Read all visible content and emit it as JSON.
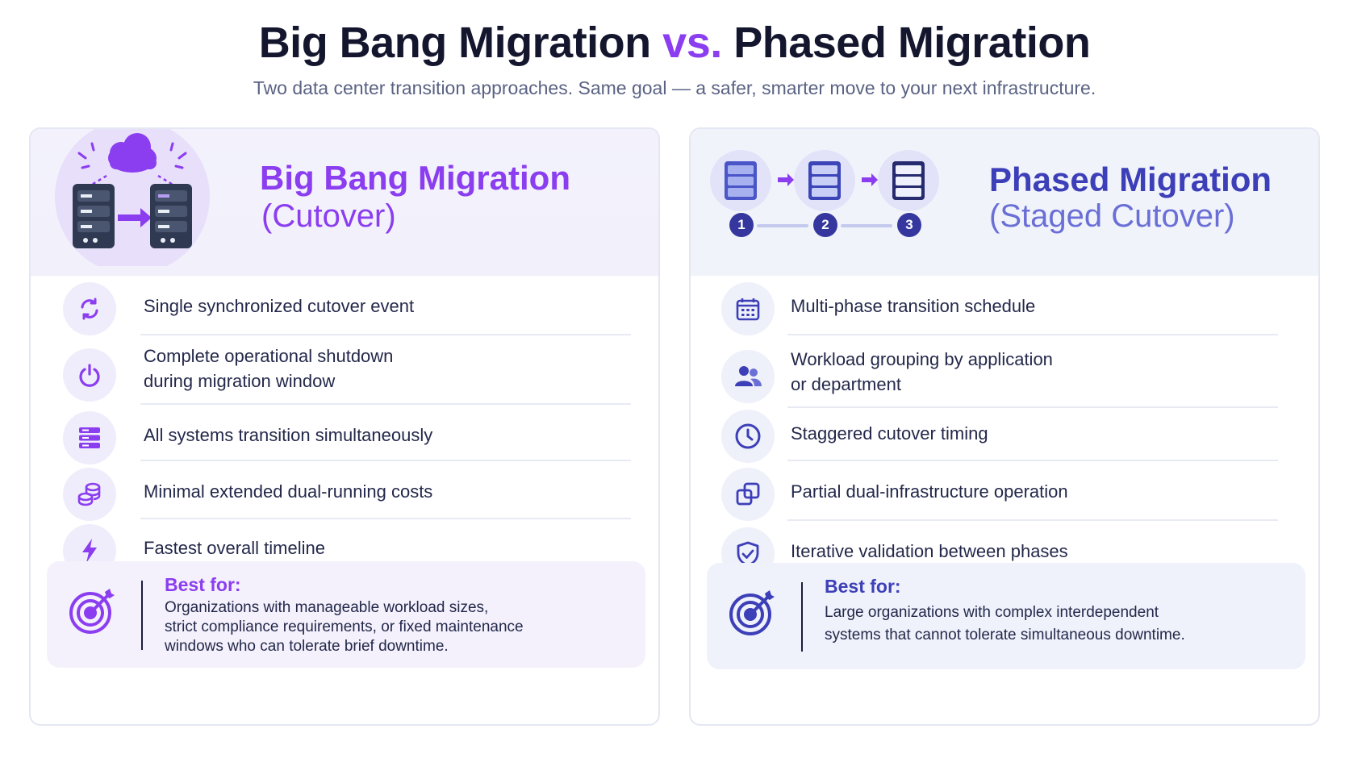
{
  "header": {
    "title_part1": "Big Bang Migration ",
    "title_vs": "vs.",
    "title_part2": " Phased Migration",
    "subtitle": "Two data center transition approaches. Same goal — a safer, smarter move to your next infrastructure."
  },
  "left": {
    "title": "Big Bang Migration",
    "subtitle": "(Cutover)",
    "items": [
      {
        "icon": "sync-icon",
        "label": "Single synchronized cutover event"
      },
      {
        "icon": "power-icon",
        "label_line1": "Complete operational shutdown",
        "label_line2": "during migration window"
      },
      {
        "icon": "server-icon",
        "label": "All systems transition simultaneously"
      },
      {
        "icon": "coins-icon",
        "label": "Minimal extended dual-running costs"
      },
      {
        "icon": "lightning-icon",
        "label": "Fastest overall timeline"
      }
    ],
    "best_for_label": "Best for:",
    "best_for_line1": "Organizations with manageable workload sizes,",
    "best_for_line2": "strict compliance requirements, or fixed maintenance",
    "best_for_line3": "windows who can tolerate brief downtime."
  },
  "right": {
    "title": "Phased Migration",
    "subtitle": "(Staged Cutover)",
    "steps": [
      "1",
      "2",
      "3"
    ],
    "items": [
      {
        "icon": "calendar-icon",
        "label": "Multi-phase transition schedule"
      },
      {
        "icon": "users-icon",
        "label_line1": "Workload grouping by application",
        "label_line2": "or department"
      },
      {
        "icon": "clock-icon",
        "label": "Staggered cutover timing"
      },
      {
        "icon": "overlap-squares-icon",
        "label": "Partial dual-infrastructure operation"
      },
      {
        "icon": "shield-check-icon",
        "label": "Iterative validation between phases"
      }
    ],
    "best_for_label": "Best for:",
    "best_for_line1": "Large organizations with complex interdependent",
    "best_for_line2": "systems that cannot tolerate simultaneous downtime."
  },
  "colors": {
    "accent_purple": "#8b3df0",
    "accent_indigo": "#3d3fb8",
    "text_dark": "#14162e"
  }
}
